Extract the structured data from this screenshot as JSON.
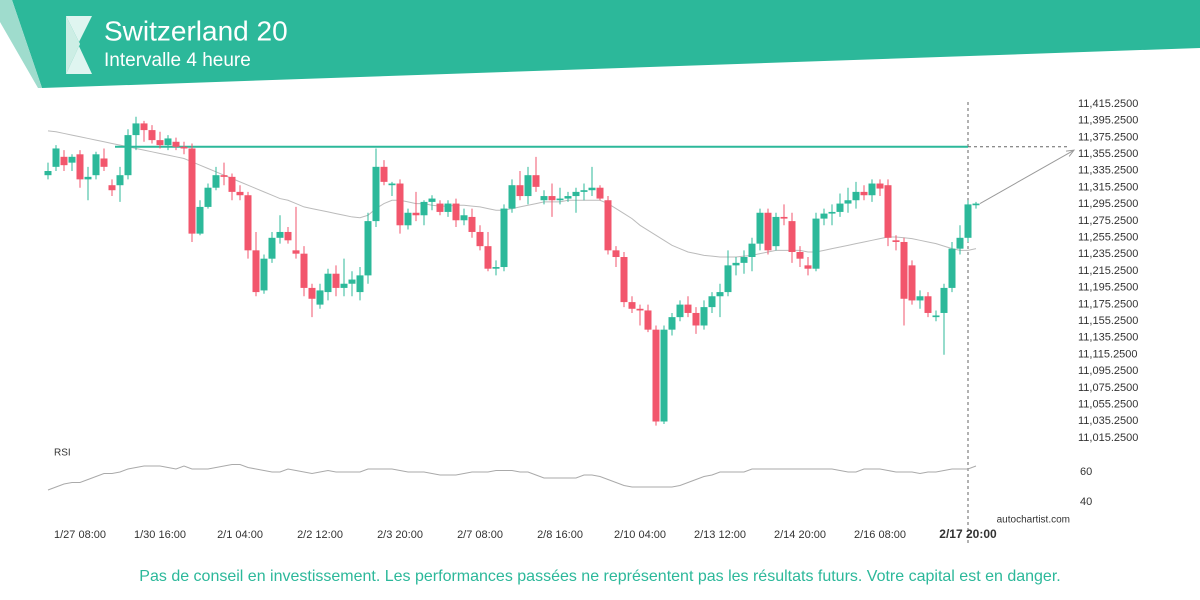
{
  "header": {
    "title": "Switzerland 20",
    "subtitle": "Intervalle 4 heure"
  },
  "chart_data": {
    "type": "candlestick",
    "categories": [
      null,
      null,
      null,
      null,
      "1/27 08:00",
      null,
      null,
      null,
      null,
      null,
      null,
      null,
      null,
      null,
      "1/30 16:00",
      null,
      null,
      null,
      null,
      null,
      null,
      null,
      null,
      null,
      "2/1 04:00",
      null,
      null,
      null,
      null,
      null,
      null,
      null,
      null,
      null,
      "2/2 12:00",
      null,
      null,
      null,
      null,
      null,
      null,
      null,
      null,
      null,
      "2/3 20:00",
      null,
      null,
      null,
      null,
      null,
      null,
      null,
      null,
      null,
      "2/7 08:00",
      null,
      null,
      null,
      null,
      null,
      null,
      null,
      null,
      null,
      "2/8 16:00",
      null,
      null,
      null,
      null,
      null,
      null,
      null,
      null,
      null,
      "2/10 04:00",
      null,
      null,
      null,
      null,
      null,
      null,
      null,
      null,
      null,
      "2/13 12:00",
      null,
      null,
      null,
      null,
      null,
      null,
      null,
      null,
      null,
      "2/14 20:00",
      null,
      null,
      null,
      null,
      null,
      null,
      null,
      null,
      null,
      "2/16 08:00",
      null,
      null,
      null,
      null,
      null,
      null,
      null,
      null,
      null,
      null,
      "2/17 20:00",
      null
    ],
    "ohlc": [
      [
        11330,
        11345,
        11325,
        11335
      ],
      [
        11340,
        11366,
        11335,
        11362
      ],
      [
        11352,
        11360,
        11335,
        11342
      ],
      [
        11345,
        11355,
        11335,
        11352
      ],
      [
        11355,
        11360,
        11315,
        11325
      ],
      [
        11325,
        11340,
        11300,
        11328
      ],
      [
        11330,
        11358,
        11325,
        11355
      ],
      [
        11350,
        11362,
        11335,
        11340
      ],
      [
        11318,
        11325,
        11305,
        11312
      ],
      [
        11318,
        11340,
        11298,
        11330
      ],
      [
        11330,
        11385,
        11325,
        11378
      ],
      [
        11378,
        11400,
        11360,
        11392
      ],
      [
        11392,
        11395,
        11370,
        11384
      ],
      [
        11384,
        11390,
        11368,
        11372
      ],
      [
        11372,
        11382,
        11362,
        11366
      ],
      [
        11366,
        11378,
        11360,
        11374
      ],
      [
        11370,
        11375,
        11360,
        11364
      ],
      [
        11364,
        11370,
        11355,
        11362
      ],
      [
        11362,
        11368,
        11250,
        11260
      ],
      [
        11260,
        11300,
        11258,
        11292
      ],
      [
        11292,
        11320,
        11290,
        11315
      ],
      [
        11315,
        11340,
        11312,
        11330
      ],
      [
        11330,
        11345,
        11318,
        11328
      ],
      [
        11328,
        11332,
        11300,
        11310
      ],
      [
        11310,
        11318,
        11300,
        11306
      ],
      [
        11306,
        11310,
        11230,
        11240
      ],
      [
        11240,
        11262,
        11185,
        11190
      ],
      [
        11192,
        11235,
        11188,
        11230
      ],
      [
        11230,
        11262,
        11225,
        11255
      ],
      [
        11255,
        11282,
        11248,
        11262
      ],
      [
        11262,
        11268,
        11248,
        11252
      ],
      [
        11240,
        11292,
        11230,
        11236
      ],
      [
        11236,
        11245,
        11185,
        11195
      ],
      [
        11195,
        11200,
        11160,
        11182
      ],
      [
        11175,
        11200,
        11170,
        11192
      ],
      [
        11190,
        11218,
        11180,
        11212
      ],
      [
        11212,
        11222,
        11185,
        11195
      ],
      [
        11195,
        11230,
        11185,
        11200
      ],
      [
        11200,
        11215,
        11185,
        11205
      ],
      [
        11190,
        11220,
        11180,
        11210
      ],
      [
        11210,
        11285,
        11200,
        11275
      ],
      [
        11275,
        11362,
        11268,
        11340
      ],
      [
        11340,
        11348,
        11318,
        11322
      ],
      [
        11318,
        11322,
        11305,
        11320
      ],
      [
        11320,
        11325,
        11260,
        11270
      ],
      [
        11270,
        11290,
        11265,
        11285
      ],
      [
        11285,
        11310,
        11275,
        11282
      ],
      [
        11282,
        11300,
        11270,
        11298
      ],
      [
        11298,
        11306,
        11288,
        11302
      ],
      [
        11296,
        11300,
        11282,
        11286
      ],
      [
        11286,
        11300,
        11280,
        11296
      ],
      [
        11296,
        11302,
        11268,
        11276
      ],
      [
        11276,
        11290,
        11270,
        11282
      ],
      [
        11280,
        11290,
        11255,
        11262
      ],
      [
        11262,
        11270,
        11240,
        11245
      ],
      [
        11245,
        11262,
        11215,
        11218
      ],
      [
        11218,
        11228,
        11210,
        11220
      ],
      [
        11220,
        11295,
        11215,
        11290
      ],
      [
        11290,
        11325,
        11285,
        11318
      ],
      [
        11318,
        11335,
        11300,
        11305
      ],
      [
        11305,
        11340,
        11295,
        11330
      ],
      [
        11330,
        11352,
        11310,
        11316
      ],
      [
        11300,
        11312,
        11295,
        11305
      ],
      [
        11305,
        11320,
        11280,
        11300
      ],
      [
        11300,
        11315,
        11295,
        11302
      ],
      [
        11302,
        11310,
        11298,
        11305
      ],
      [
        11305,
        11315,
        11285,
        11310
      ],
      [
        11310,
        11320,
        11300,
        11312
      ],
      [
        11312,
        11340,
        11305,
        11315
      ],
      [
        11315,
        11318,
        11300,
        11302
      ],
      [
        11300,
        11305,
        11235,
        11240
      ],
      [
        11240,
        11245,
        11220,
        11232
      ],
      [
        11232,
        11238,
        11172,
        11178
      ],
      [
        11178,
        11185,
        11165,
        11170
      ],
      [
        11170,
        11175,
        11150,
        11168
      ],
      [
        11168,
        11175,
        11142,
        11145
      ],
      [
        11145,
        11150,
        11030,
        11035
      ],
      [
        11035,
        11150,
        11032,
        11145
      ],
      [
        11145,
        11165,
        11138,
        11160
      ],
      [
        11160,
        11180,
        11155,
        11175
      ],
      [
        11175,
        11185,
        11160,
        11165
      ],
      [
        11165,
        11172,
        11140,
        11150
      ],
      [
        11150,
        11180,
        11145,
        11172
      ],
      [
        11172,
        11190,
        11165,
        11185
      ],
      [
        11185,
        11200,
        11160,
        11190
      ],
      [
        11190,
        11240,
        11185,
        11222
      ],
      [
        11222,
        11232,
        11210,
        11225
      ],
      [
        11225,
        11240,
        11212,
        11232
      ],
      [
        11232,
        11255,
        11215,
        11248
      ],
      [
        11248,
        11290,
        11240,
        11285
      ],
      [
        11285,
        11290,
        11235,
        11240
      ],
      [
        11245,
        11285,
        11240,
        11280
      ],
      [
        11280,
        11295,
        11270,
        11278
      ],
      [
        11275,
        11285,
        11225,
        11238
      ],
      [
        11238,
        11245,
        11220,
        11230
      ],
      [
        11222,
        11232,
        11210,
        11218
      ],
      [
        11218,
        11285,
        11215,
        11278
      ],
      [
        11278,
        11290,
        11270,
        11284
      ],
      [
        11284,
        11295,
        11270,
        11286
      ],
      [
        11286,
        11308,
        11280,
        11296
      ],
      [
        11296,
        11315,
        11285,
        11300
      ],
      [
        11300,
        11322,
        11290,
        11310
      ],
      [
        11310,
        11318,
        11300,
        11306
      ],
      [
        11306,
        11325,
        11298,
        11320
      ],
      [
        11320,
        11325,
        11305,
        11314
      ],
      [
        11318,
        11325,
        11245,
        11255
      ],
      [
        11252,
        11258,
        11240,
        11250
      ],
      [
        11250,
        11255,
        11150,
        11182
      ],
      [
        11222,
        11228,
        11175,
        11180
      ],
      [
        11180,
        11192,
        11170,
        11185
      ],
      [
        11185,
        11190,
        11160,
        11165
      ],
      [
        11160,
        11168,
        11155,
        11162
      ],
      [
        11165,
        11200,
        11115,
        11195
      ],
      [
        11195,
        11250,
        11190,
        11242
      ],
      [
        11242,
        11270,
        11235,
        11255
      ],
      [
        11255,
        11300,
        11250,
        11295
      ],
      [
        11294,
        11298,
        11290,
        11296
      ]
    ],
    "up_color": "#2cb99a",
    "down_color": "#f2566c",
    "moving_average": [
      11383,
      11382,
      11380,
      11378,
      11376,
      11374,
      11372,
      11370,
      11368,
      11366,
      11364,
      11362,
      11360,
      11358,
      11356,
      11354,
      11352,
      11350,
      11346,
      11342,
      11338,
      11334,
      11330,
      11326,
      11322,
      11318,
      11314,
      11310,
      11306,
      11302,
      11300,
      11296,
      11292,
      11290,
      11288,
      11286,
      11284,
      11282,
      11280,
      11279,
      11282,
      11290,
      11296,
      11300,
      11300,
      11298,
      11296,
      11296,
      11294,
      11293,
      11293,
      11294,
      11294,
      11293,
      11292,
      11290,
      11288,
      11288,
      11290,
      11292,
      11294,
      11296,
      11298,
      11298,
      11298,
      11300,
      11300,
      11300,
      11300,
      11300,
      11296,
      11290,
      11284,
      11278,
      11270,
      11264,
      11258,
      11252,
      11246,
      11242,
      11238,
      11236,
      11234,
      11233,
      11232,
      11232,
      11232,
      11233,
      11234,
      11236,
      11238,
      11240,
      11240,
      11240,
      11240,
      11238,
      11238,
      11240,
      11242,
      11244,
      11246,
      11248,
      11250,
      11252,
      11254,
      11256,
      11256,
      11255,
      11254,
      11252,
      11250,
      11248,
      11245,
      11242,
      11240,
      11240,
      11242
    ],
    "resistance": 11364,
    "forecast_target": 11360,
    "ylim": [
      11015.25,
      11415.25
    ],
    "yticks": [
      {
        "value": 11415.25,
        "label": "11,415.2500"
      },
      {
        "value": 11395.25,
        "label": "11,395.2500"
      },
      {
        "value": 11375.25,
        "label": "11,375.2500"
      },
      {
        "value": 11355.25,
        "label": "11,355.2500"
      },
      {
        "value": 11335.25,
        "label": "11,335.2500"
      },
      {
        "value": 11315.25,
        "label": "11,315.2500"
      },
      {
        "value": 11295.25,
        "label": "11,295.2500"
      },
      {
        "value": 11275.25,
        "label": "11,275.2500"
      },
      {
        "value": 11255.25,
        "label": "11,255.2500"
      },
      {
        "value": 11235.25,
        "label": "11,235.2500"
      },
      {
        "value": 11215.25,
        "label": "11,215.2500"
      },
      {
        "value": 11195.25,
        "label": "11,195.2500"
      },
      {
        "value": 11175.25,
        "label": "11,175.2500"
      },
      {
        "value": 11155.25,
        "label": "11,155.2500"
      },
      {
        "value": 11135.25,
        "label": "11,135.2500"
      },
      {
        "value": 11115.25,
        "label": "11,115.2500"
      },
      {
        "value": 11095.25,
        "label": "11,095.2500"
      },
      {
        "value": 11075.25,
        "label": "11,075.2500"
      },
      {
        "value": 11055.25,
        "label": "11,055.2500"
      },
      {
        "value": 11035.25,
        "label": "11,035.2500"
      },
      {
        "value": 11015.25,
        "label": "11,015.2500"
      }
    ],
    "rsi": {
      "label": "RSI",
      "ylim": [
        28,
        78
      ],
      "yticks": [
        60,
        40
      ],
      "values": [
        48,
        50,
        52,
        53,
        53,
        55,
        57,
        59,
        59,
        60,
        62,
        63,
        64,
        64,
        64,
        63,
        62,
        64,
        62,
        62,
        62,
        63,
        64,
        65,
        65,
        63,
        62,
        61,
        60,
        60,
        62,
        61,
        60,
        59,
        60,
        61,
        60,
        60,
        60,
        60,
        62,
        62,
        62,
        62,
        61,
        60,
        60,
        60,
        59,
        58,
        58,
        58,
        59,
        60,
        60,
        60,
        61,
        61,
        61,
        60,
        60,
        58,
        56,
        56,
        56,
        56,
        56,
        58,
        58,
        57,
        55,
        53,
        51,
        50,
        50,
        50,
        50,
        50,
        50,
        51,
        53,
        55,
        57,
        58,
        60,
        60,
        60,
        60,
        62,
        62,
        62,
        62,
        62,
        62,
        62,
        62,
        62,
        62,
        62,
        61,
        60,
        60,
        62,
        62,
        62,
        61,
        60,
        60,
        60,
        59,
        60,
        60,
        61,
        62,
        62,
        62,
        64
      ]
    },
    "watermark": "autochartist.com"
  },
  "footer": {
    "disclaimer": "Pas de conseil en investissement. Les performances passées ne représentent pas les résultats futurs. Votre capital est en danger."
  }
}
